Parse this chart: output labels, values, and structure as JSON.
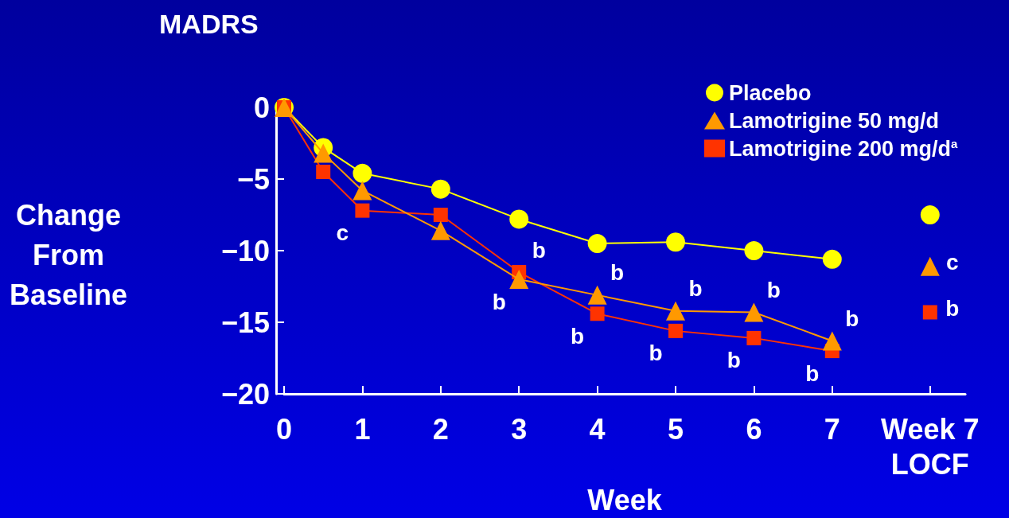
{
  "chart_data": {
    "type": "line",
    "title": "MADRS",
    "xlabel": "Week",
    "ylabel": "Change\nFrom\nBaseline",
    "xlim": [
      0,
      8.7
    ],
    "xticks": [
      0,
      1,
      2,
      3,
      4,
      5,
      6,
      7,
      {
        "value": 8.25,
        "label": "Week 7\nLOCF"
      }
    ],
    "ylim": [
      -20,
      0
    ],
    "yticks": [
      {
        "value": -20,
        "label": "−20"
      },
      {
        "value": -15,
        "label": "−15"
      },
      {
        "value": -10,
        "label": "−10"
      },
      {
        "value": -5,
        "label": "−5"
      },
      0
    ],
    "grid": false,
    "legend": "top right",
    "series": [
      {
        "name": "Placebo",
        "color": "#ffff00",
        "marker": "circle",
        "x": [
          0,
          0.5,
          1,
          2,
          3,
          4,
          5,
          6,
          7
        ],
        "values": [
          0,
          -2.8,
          -4.6,
          -5.7,
          -7.8,
          -9.5,
          -9.4,
          -10.0,
          -10.6
        ]
      },
      {
        "name": "Lamotrigine 50 mg/d",
        "color": "#ff9900",
        "marker": "triangle",
        "x": [
          0,
          0.5,
          1,
          2,
          3,
          4,
          5,
          6,
          7
        ],
        "values": [
          0,
          -3.2,
          -5.8,
          -8.6,
          -12.0,
          -13.1,
          -14.2,
          -14.3,
          -16.3
        ]
      },
      {
        "name": "Lamotrigine 200 mg/d$^{a}$",
        "color": "#ff3300",
        "marker": "square",
        "x": [
          0,
          0.5,
          1,
          2,
          3,
          4,
          5,
          6,
          7
        ],
        "values": [
          0,
          -4.5,
          -7.2,
          -7.5,
          -11.5,
          -14.4,
          -15.6,
          -16.1,
          -17.0
        ]
      },
      {
        "type": "scatter",
        "color": "#ffff00",
        "marker": "circle",
        "x": [
          8.25
        ],
        "values": [
          -7.5
        ]
      },
      {
        "type": "scatter",
        "color": "#ff9900",
        "marker": "triangle",
        "x": [
          8.25
        ],
        "values": [
          -11.1
        ]
      },
      {
        "type": "scatter",
        "color": "#ff3300",
        "marker": "square",
        "x": [
          8.25
        ],
        "values": [
          -14.3
        ]
      }
    ],
    "annotations": [
      {
        "text": "c",
        "x": 1,
        "y": -7.2
      },
      {
        "text": "b",
        "x": 3,
        "y": -11.5
      },
      {
        "text": "b",
        "x": 3,
        "y": -12.0
      },
      {
        "text": "b",
        "x": 4,
        "y": -13.1
      },
      {
        "text": "b",
        "x": 4,
        "y": -14.4
      },
      {
        "text": "b",
        "x": 5,
        "y": -14.2
      },
      {
        "text": "b",
        "x": 5,
        "y": -15.6
      },
      {
        "text": "b",
        "x": 6,
        "y": -14.3
      },
      {
        "text": "b",
        "x": 6,
        "y": -16.1
      },
      {
        "text": "b",
        "x": 7,
        "y": -16.3
      },
      {
        "text": "b",
        "x": 7,
        "y": -17.0
      },
      {
        "text": "c",
        "x": 8.25,
        "y": -11.1
      },
      {
        "text": "b",
        "x": 8.25,
        "y": -14.3
      }
    ]
  }
}
